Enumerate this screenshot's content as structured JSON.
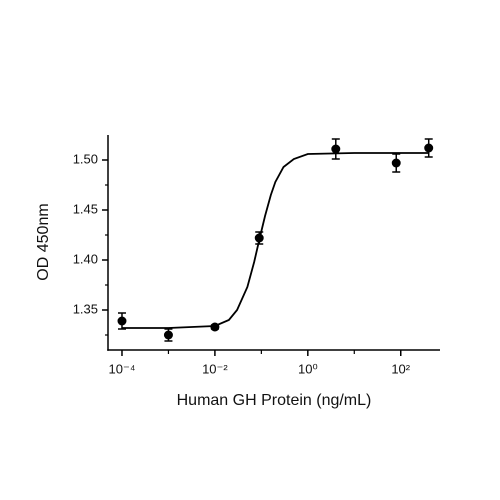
{
  "chart_data": {
    "type": "scatter",
    "x_label": "Human GH Protein (ng/mL)",
    "y_label": "OD 450nm",
    "xscale": "log",
    "xlim": [
      5e-05,
      700
    ],
    "ylim": [
      1.31,
      1.525
    ],
    "xticks": [
      {
        "value": 0.0001,
        "label": "10⁻⁴"
      },
      {
        "value": 0.01,
        "label": "10⁻²"
      },
      {
        "value": 1,
        "label": "10⁰"
      },
      {
        "value": 100,
        "label": "10²"
      }
    ],
    "xminor_ticks": [
      0.001,
      0.1,
      10
    ],
    "yticks": [
      1.35,
      {
        "value": 1.4,
        "label": "1.40"
      },
      1.45,
      {
        "value": 1.5,
        "label": "1.50"
      }
    ],
    "yminor_ticks": [
      1.325,
      1.375,
      1.425,
      1.475
    ],
    "color": "#000000",
    "points": {
      "x": [
        0.0001,
        0.001,
        0.01,
        0.09,
        4,
        80,
        400
      ],
      "values": [
        1.339,
        1.325,
        1.333,
        1.422,
        1.511,
        1.497,
        1.512
      ],
      "errors": [
        0.008,
        0.006,
        0.002,
        0.006,
        0.01,
        0.009,
        0.009
      ]
    },
    "curve": {
      "x": [
        0.0001,
        0.001,
        0.01,
        0.02,
        0.03,
        0.05,
        0.07,
        0.09,
        0.12,
        0.16,
        0.2,
        0.3,
        0.5,
        1,
        10,
        100,
        400
      ],
      "values": [
        1.332,
        1.332,
        1.334,
        1.34,
        1.35,
        1.373,
        1.398,
        1.42,
        1.444,
        1.465,
        1.478,
        1.493,
        1.501,
        1.506,
        1.507,
        1.507,
        1.507
      ]
    }
  }
}
